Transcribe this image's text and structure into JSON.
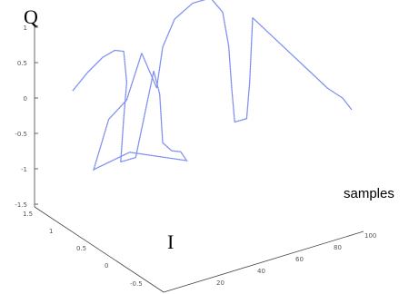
{
  "chart_data": {
    "type": "line",
    "title": "",
    "axes": {
      "q": {
        "label": "Q",
        "ticks": [
          "1",
          "0.5",
          "0",
          "-0.5",
          "-1",
          "-1.5"
        ]
      },
      "i": {
        "label": "I",
        "ticks": [
          "1.5",
          "1",
          "0.5",
          "0",
          "-0.5"
        ]
      },
      "samples": {
        "label": "samples",
        "ticks": [
          "20",
          "40",
          "60",
          "80",
          "100"
        ]
      }
    },
    "grid": false,
    "colors": {
      "trace": "#7f8ff0"
    },
    "series": [
      {
        "points": [
          {
            "s": 0,
            "i": 0.0,
            "q": 0.2
          },
          {
            "s": 5,
            "i": 0.0,
            "q": 0.4
          },
          {
            "s": 10,
            "i": 0.0,
            "q": 0.55
          },
          {
            "s": 14,
            "i": 0.0,
            "q": 0.6
          },
          {
            "s": 17,
            "i": 0.0,
            "q": 0.55
          },
          {
            "s": 18,
            "i": 0.0,
            "q": 0.1
          },
          {
            "s": 17,
            "i": 0.0,
            "q": -0.4
          },
          {
            "s": 16,
            "i": 0.0,
            "q": -1.0
          },
          {
            "s": 21,
            "i": 0.0,
            "q": -1.0
          },
          {
            "s": 27,
            "i": 0.0,
            "q": 0.15
          },
          {
            "s": 29,
            "i": 0.0,
            "q": -0.2
          },
          {
            "s": 30,
            "i": 0.0,
            "q": -0.9
          },
          {
            "s": 33,
            "i": 0.0,
            "q": -1.05
          },
          {
            "s": 36,
            "i": 0.0,
            "q": -1.1
          },
          {
            "s": 38,
            "i": 0.0,
            "q": -1.25
          },
          {
            "s": 19,
            "i": 0.0,
            "q": -0.9
          },
          {
            "s": 7,
            "i": 0.0,
            "q": -1.0
          },
          {
            "s": 12,
            "i": 0.0,
            "q": -0.35
          },
          {
            "s": 18,
            "i": 0.0,
            "q": -0.15
          },
          {
            "s": 23,
            "i": 0.0,
            "q": 0.45
          },
          {
            "s": 28,
            "i": 0.0,
            "q": -0.1
          },
          {
            "s": 30,
            "i": 0.0,
            "q": 0.45
          },
          {
            "s": 34,
            "i": 0.0,
            "q": 0.8
          },
          {
            "s": 40,
            "i": 0.0,
            "q": 0.95
          },
          {
            "s": 46,
            "i": 0.0,
            "q": 0.95
          },
          {
            "s": 50,
            "i": 0.0,
            "q": 0.7
          },
          {
            "s": 52,
            "i": 0.0,
            "q": 0.2
          },
          {
            "s": 53,
            "i": 0.0,
            "q": -0.4
          },
          {
            "s": 54,
            "i": 0.0,
            "q": -0.9
          },
          {
            "s": 58,
            "i": 0.0,
            "q": -0.9
          },
          {
            "s": 59,
            "i": 0.0,
            "q": -0.4
          },
          {
            "s": 60,
            "i": 0.0,
            "q": 0.5
          },
          {
            "s": 85,
            "i": 0.0,
            "q": -0.8
          },
          {
            "s": 90,
            "i": 0.0,
            "q": -1.0
          },
          {
            "s": 93,
            "i": 0.0,
            "q": -1.2
          }
        ]
      }
    ]
  }
}
